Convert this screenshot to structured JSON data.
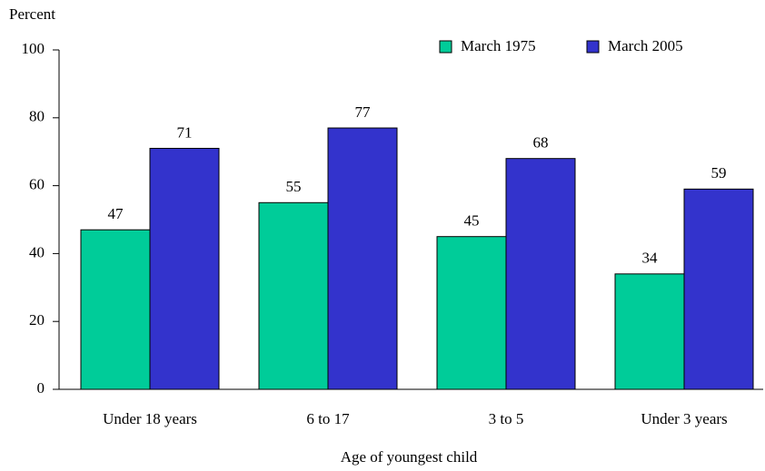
{
  "chart_data": {
    "type": "bar",
    "y_axis_label": "Percent",
    "x_axis_label": "Age of youngest child",
    "categories": [
      "Under 18 years",
      "6 to 17",
      "3 to 5",
      "Under 3 years"
    ],
    "series": [
      {
        "name": "March 1975",
        "color": "#00cc99",
        "values": [
          47,
          55,
          45,
          34
        ]
      },
      {
        "name": "March 2005",
        "color": "#3333cc",
        "values": [
          71,
          77,
          68,
          59
        ]
      }
    ],
    "ylim": [
      0,
      100
    ],
    "yticks": [
      0,
      20,
      40,
      60,
      80,
      100
    ],
    "legend": "top-right",
    "grid": false
  }
}
